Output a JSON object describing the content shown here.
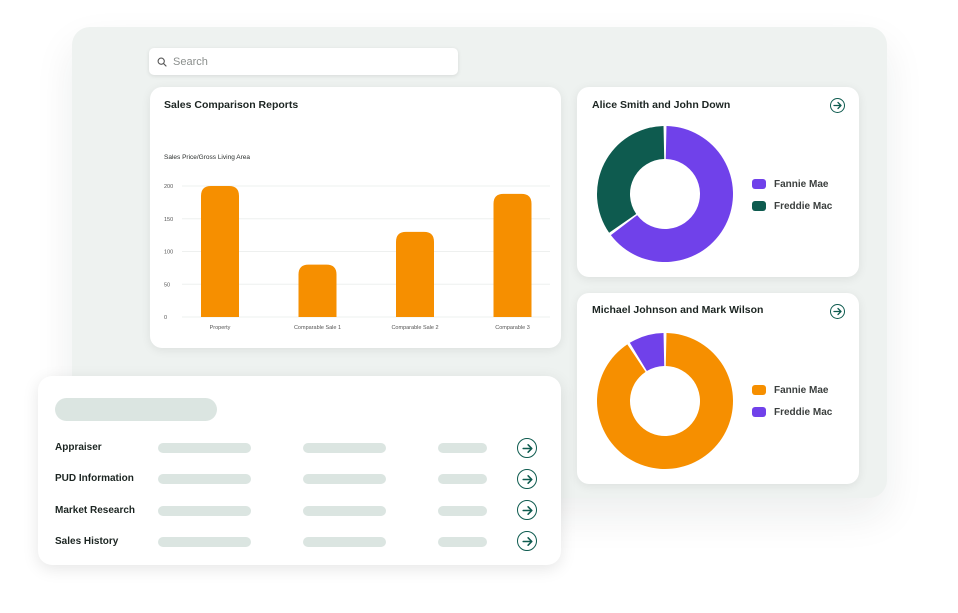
{
  "search": {
    "placeholder": "Search",
    "icon": "search-icon"
  },
  "sales_report": {
    "title": "Sales Comparison Reports",
    "subtitle": "Sales Price/Gross Living Area",
    "chart_data": {
      "type": "bar",
      "title": "Sales Comparison Reports",
      "ylabel": "Sales Price/Gross Living Area",
      "xlabel": "",
      "categories": [
        "Property",
        "Comparable Sale 1",
        "Comparable Sale 2",
        "Comparable 3"
      ],
      "values": [
        200,
        80,
        130,
        188
      ],
      "ylim": [
        0,
        200
      ],
      "yticks": [
        "0",
        "50",
        "100",
        "150",
        "200"
      ],
      "grid": true,
      "color": "#f68f00"
    }
  },
  "donut1": {
    "title": "Alice Smith and John Down",
    "chart_data": {
      "type": "pie",
      "title": "Alice Smith and John Down",
      "categories": [
        "Fannie Mae",
        "Freddie Mac"
      ],
      "values": [
        65,
        35
      ],
      "colors": [
        "#7041ea",
        "#0e5b4f"
      ],
      "legend": "right"
    }
  },
  "donut2": {
    "title": "Michael Johnson and Mark Wilson",
    "chart_data": {
      "type": "pie",
      "title": "Michael Johnson and Mark Wilson",
      "categories": [
        "Fannie Mae",
        "Freddie Mac"
      ],
      "values": [
        91,
        9
      ],
      "colors": [
        "#f68f00",
        "#7041ea"
      ],
      "legend": "right"
    }
  },
  "list": {
    "rows": [
      {
        "label": "Appraiser"
      },
      {
        "label": "PUD Information"
      },
      {
        "label": "Market Research"
      },
      {
        "label": "Sales History"
      }
    ]
  },
  "colors": {
    "accent": "#0e5b4f",
    "orange": "#f68f00",
    "purple": "#7041ea",
    "placeholder": "#dbe5e1"
  }
}
